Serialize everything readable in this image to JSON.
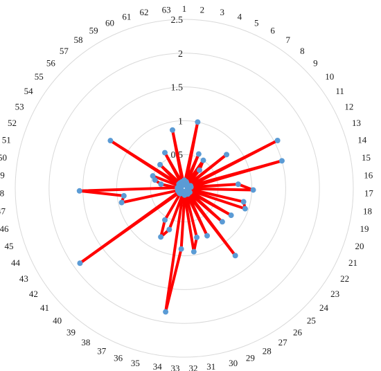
{
  "chart_data": {
    "type": "radar",
    "title": "",
    "series_color": "#ff0000",
    "marker_color": "#5b9bd5",
    "grid_color": "#d9d9d9",
    "grid": true,
    "rlim": [
      0,
      2.5
    ],
    "r_ticks": [
      0,
      0.5,
      1,
      1.5,
      2,
      2.5
    ],
    "r_tick_labels": [
      "0",
      "0.5",
      "1",
      "1.5",
      "2",
      "2.5"
    ],
    "categories": [
      "1",
      "2",
      "3",
      "4",
      "5",
      "6",
      "7",
      "8",
      "9",
      "10",
      "11",
      "12",
      "13",
      "14",
      "15",
      "16",
      "17",
      "18",
      "19",
      "20",
      "21",
      "22",
      "23",
      "24",
      "25",
      "26",
      "27",
      "28",
      "29",
      "30",
      "31",
      "32",
      "33",
      "34",
      "35",
      "36",
      "37",
      "38",
      "39",
      "40",
      "41",
      "42",
      "43",
      "44",
      "45",
      "46",
      "47",
      "48",
      "49",
      "50",
      "51",
      "52",
      "53",
      "54",
      "55",
      "56",
      "57",
      "58",
      "59",
      "60",
      "61",
      "62",
      "63"
    ],
    "series": [
      {
        "values": [
          0.12,
          0.1,
          1.0,
          0.1,
          0.55,
          0.08,
          0.5,
          0.35,
          0.05,
          0.8,
          0.05,
          1.55,
          0.1,
          1.5,
          0.1,
          0.8,
          1.02,
          0.05,
          0.9,
          0.95,
          0.05,
          0.8,
          0.1,
          0.75,
          0.05,
          1.25,
          0.1,
          0.78,
          0.05,
          0.75,
          0.95,
          0.1,
          0.9,
          1.85,
          0.08,
          0.65,
          0.8,
          0.55,
          0.1,
          0.05,
          0.1,
          1.9,
          0.05,
          0.1,
          0.1,
          0.95,
          0.9,
          1.55,
          0.1,
          0.35,
          0.45,
          0.5,
          0.05,
          1.3,
          0.1,
          0.5,
          0.1,
          0.05,
          0.6,
          0.1,
          0.1,
          0.88,
          0.05
        ]
      }
    ]
  }
}
